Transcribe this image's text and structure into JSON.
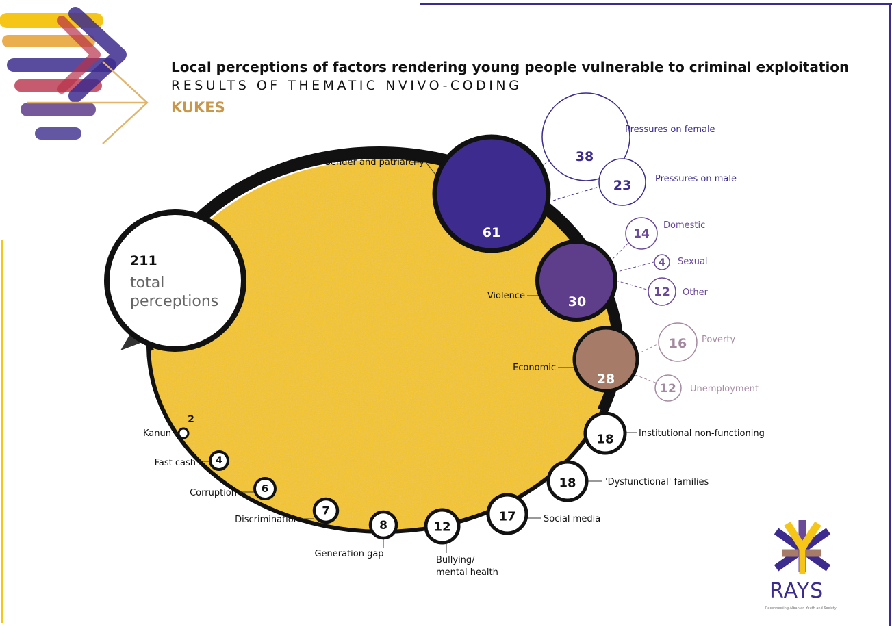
{
  "header": {
    "title": "Local perceptions of factors rendering young people vulnerable to criminal exploitation",
    "subtitle": "RESULTS OF THEMATIC NVIVO-CODING",
    "location": "KUKES"
  },
  "total": {
    "value": "211",
    "label_line1": "total",
    "label_line2": "perceptions"
  },
  "main_factors": [
    {
      "label": "Gender and patriarchy",
      "value": "61",
      "color": "#3d2c8d"
    },
    {
      "label": "Violence",
      "value": "30",
      "color": "#5e3d8a"
    },
    {
      "label": "Economic",
      "value": "28",
      "color": "#a67c68"
    }
  ],
  "sub_factors": {
    "gender": [
      {
        "label": "Pressures on female",
        "value": "38"
      },
      {
        "label": "Pressures on male",
        "value": "23"
      }
    ],
    "violence": [
      {
        "label": "Domestic",
        "value": "14"
      },
      {
        "label": "Sexual",
        "value": "4"
      },
      {
        "label": "Other",
        "value": "12"
      }
    ],
    "economic": [
      {
        "label": "Poverty",
        "value": "16"
      },
      {
        "label": "Unemployment",
        "value": "12"
      }
    ]
  },
  "minor_factors": [
    {
      "label": "Institutional non-functioning",
      "value": "18"
    },
    {
      "label": "'Dysfunctional' families",
      "value": "18"
    },
    {
      "label": "Social media",
      "value": "17"
    },
    {
      "label_line1": "Bullying/",
      "label_line2": "mental health",
      "value": "12"
    },
    {
      "label": "Generation gap",
      "value": "8"
    },
    {
      "label": "Discrimination",
      "value": "7"
    },
    {
      "label": "Corruption",
      "value": "6"
    },
    {
      "label": "Fast cash",
      "value": "4"
    },
    {
      "label": "Kanun",
      "value": "2"
    }
  ],
  "logo": {
    "name": "RAYS",
    "tagline": "Reconnecting Albanian Youth and Society"
  },
  "colors": {
    "yellow": "#f5c518",
    "purple_dark": "#3d2c8d",
    "purple_mid": "#5e3d8a",
    "brown": "#a67c68",
    "gold_text": "#c9974a",
    "gender_sub": "#3d2c8d",
    "violence_sub": "#6a4a98",
    "economic_sub": "#a48aa0"
  }
}
